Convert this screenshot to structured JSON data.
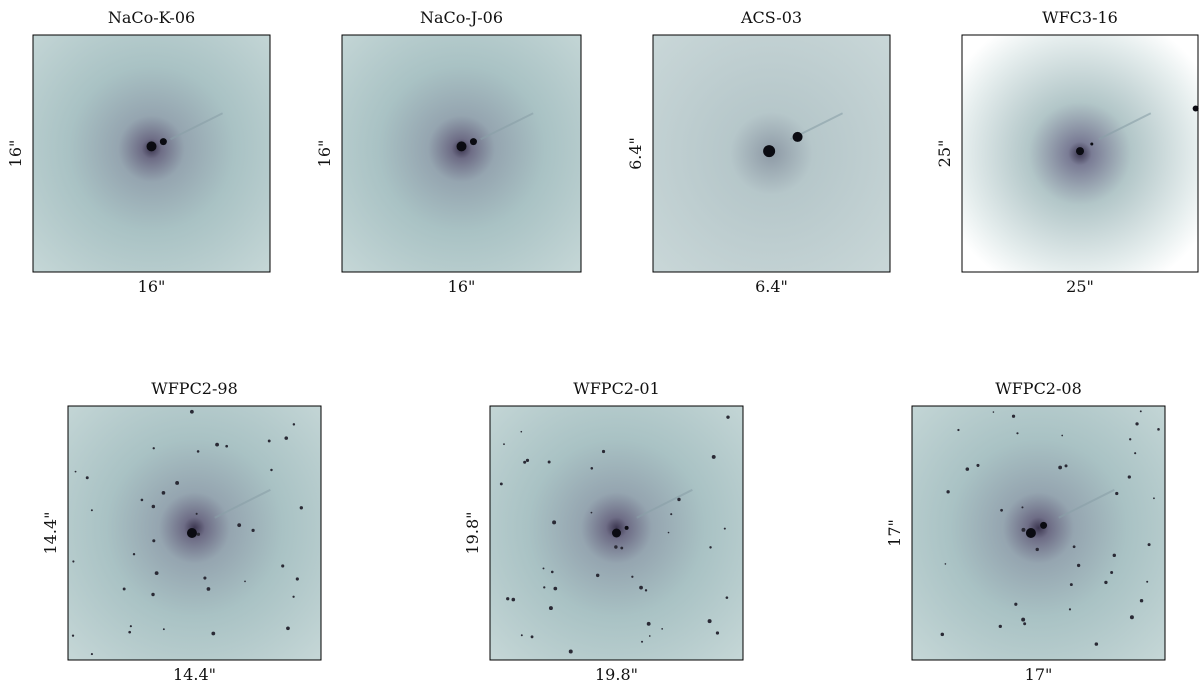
{
  "panels": [
    {
      "title": "NaCo-K-06",
      "xlabel": "16\"",
      "ylabel": "16\""
    },
    {
      "title": "NaCo-J-06",
      "xlabel": "16\"",
      "ylabel": "16\""
    },
    {
      "title": "ACS-03",
      "xlabel": "6.4\"",
      "ylabel": "6.4\""
    },
    {
      "title": "WFC3-16",
      "xlabel": "25\"",
      "ylabel": "25\""
    },
    {
      "title": "WFPC2-98",
      "xlabel": "14.4\"",
      "ylabel": "14.4\""
    },
    {
      "title": "WFPC2-01",
      "xlabel": "19.8\"",
      "ylabel": "19.8\""
    },
    {
      "title": "WFPC2-08",
      "xlabel": "17\"",
      "ylabel": "17\""
    }
  ]
}
